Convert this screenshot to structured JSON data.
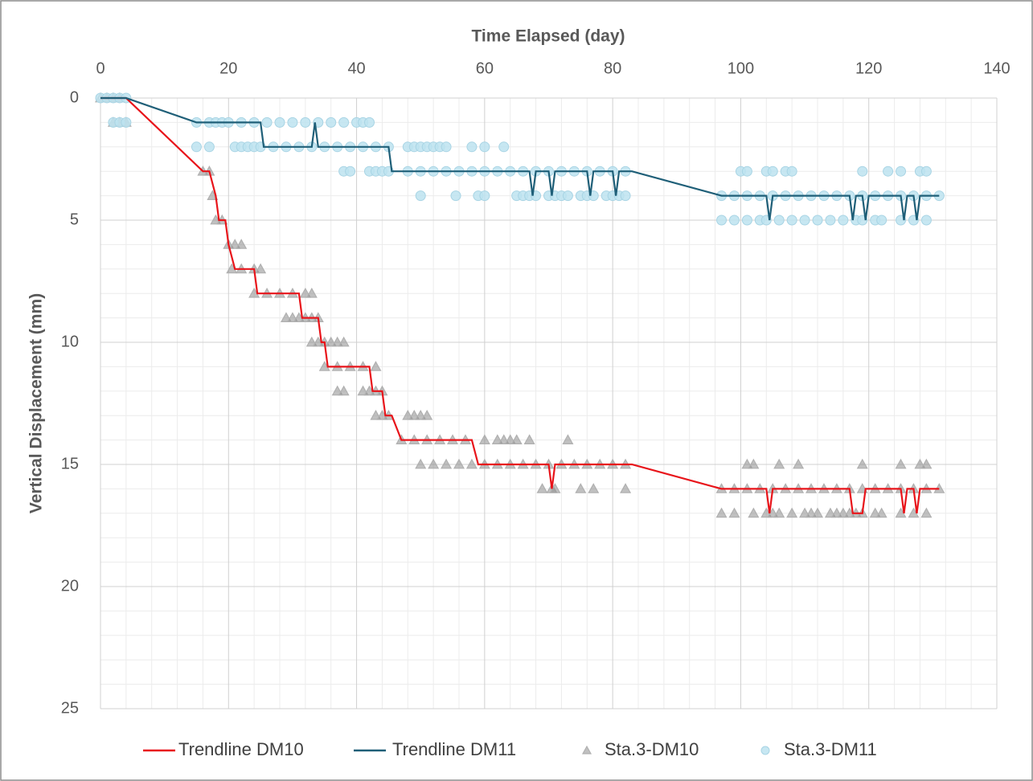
{
  "chart_data": {
    "type": "scatter",
    "x_label": "Time Elapsed (day)",
    "y_label": "Vertical Displacement (mm)",
    "xlim": [
      0,
      140
    ],
    "xticks": [
      0,
      20,
      40,
      60,
      80,
      100,
      120,
      140
    ],
    "ylim": [
      0,
      25
    ],
    "yticks": [
      0,
      5,
      10,
      15,
      20,
      25
    ],
    "y_inverted": true,
    "x_axis_position": "top",
    "grid": true,
    "minor_grid": true,
    "legend": "bottom",
    "series": [
      {
        "name": "Trendline DM10",
        "type": "line",
        "color": "#e8141a",
        "x": [
          0,
          4,
          16,
          17,
          18,
          18.5,
          19.5,
          20,
          21,
          24,
          24.5,
          31,
          31.5,
          34,
          34.5,
          35,
          35.5,
          42,
          42.5,
          44,
          44.5,
          45.5,
          47,
          58,
          59,
          70,
          70.5,
          71,
          83,
          97,
          104,
          104.5,
          105,
          117,
          117.5,
          119,
          119.5,
          125,
          125.5,
          126,
          127,
          127.5,
          128,
          131
        ],
        "values": [
          0,
          0,
          3,
          3,
          4,
          5,
          5,
          6,
          7,
          7,
          8,
          8,
          9,
          9,
          10,
          10,
          11,
          11,
          12,
          12,
          13,
          13,
          14,
          14,
          15,
          15,
          16,
          15,
          15,
          16,
          16,
          17,
          16,
          16,
          17,
          17,
          16,
          16,
          17,
          16,
          16,
          17,
          16,
          16
        ]
      },
      {
        "name": "Trendline DM11",
        "type": "line",
        "color": "#1f5f78",
        "x": [
          0,
          4,
          15,
          25,
          25.5,
          33,
          33.5,
          34,
          45,
          45.5,
          67,
          67.5,
          68,
          70,
          70.5,
          71,
          76,
          76.5,
          77,
          80,
          80.5,
          81,
          83,
          97,
          104,
          104.5,
          105,
          117,
          117.5,
          118,
          119,
          119.5,
          120,
          125,
          125.5,
          126,
          127,
          127.5,
          128,
          131
        ],
        "values": [
          0,
          0,
          1,
          1,
          2,
          2,
          1,
          2,
          2,
          3,
          3,
          4,
          3,
          3,
          4,
          3,
          3,
          4,
          3,
          3,
          4,
          3,
          3,
          4,
          4,
          5,
          4,
          4,
          5,
          4,
          4,
          5,
          4,
          4,
          5,
          4,
          4,
          5,
          4,
          4
        ]
      },
      {
        "name": "Sta.3-DM10",
        "type": "marker",
        "marker": "triangle",
        "color": "#8c8c8c",
        "x": [
          0,
          1,
          2,
          3,
          2,
          3,
          4,
          16,
          17,
          17.5,
          18,
          19,
          20,
          21,
          22,
          20.5,
          22,
          24,
          25,
          24,
          26,
          28,
          30,
          32,
          33,
          29,
          30,
          31,
          32,
          33,
          34,
          33,
          34,
          35,
          36,
          37,
          38,
          35,
          37,
          39,
          41,
          43,
          37,
          38,
          41,
          42,
          43,
          44,
          43,
          44,
          45,
          48,
          49,
          50,
          51,
          47,
          49,
          51,
          53,
          55,
          57,
          60,
          62,
          63,
          64,
          65,
          67,
          73,
          50,
          52,
          54,
          56,
          58,
          60,
          62,
          64,
          66,
          68,
          70,
          72,
          74,
          76,
          78,
          80,
          82,
          69,
          70.5,
          71,
          75,
          77,
          82,
          97,
          99,
          101,
          103,
          105,
          107,
          109,
          111,
          113,
          115,
          117,
          119,
          121,
          123,
          125,
          127,
          129,
          131,
          101,
          102,
          106,
          109,
          119,
          125,
          128,
          129,
          97,
          99,
          102,
          104,
          105,
          106,
          108,
          110,
          111,
          112,
          114,
          115,
          116,
          117,
          118,
          119,
          121,
          122,
          125,
          127,
          129
        ],
        "values": [
          0,
          0,
          0,
          0,
          1,
          1,
          1,
          3,
          3,
          4,
          5,
          5,
          6,
          6,
          6,
          7,
          7,
          7,
          7,
          8,
          8,
          8,
          8,
          8,
          8,
          9,
          9,
          9,
          9,
          9,
          9,
          10,
          10,
          10,
          10,
          10,
          10,
          11,
          11,
          11,
          11,
          11,
          12,
          12,
          12,
          12,
          12,
          12,
          13,
          13,
          13,
          13,
          13,
          13,
          13,
          14,
          14,
          14,
          14,
          14,
          14,
          14,
          14,
          14,
          14,
          14,
          14,
          14,
          15,
          15,
          15,
          15,
          15,
          15,
          15,
          15,
          15,
          15,
          15,
          15,
          15,
          15,
          15,
          15,
          15,
          16,
          16,
          16,
          16,
          16,
          16,
          16,
          16,
          16,
          16,
          16,
          16,
          16,
          16,
          16,
          16,
          16,
          16,
          16,
          16,
          16,
          16,
          16,
          16,
          15,
          15,
          15,
          15,
          15,
          15,
          15,
          15,
          17,
          17,
          17,
          17,
          17,
          17,
          17,
          17,
          17,
          17,
          17,
          17,
          17,
          17,
          17,
          17,
          17,
          17,
          17,
          17,
          17
        ]
      },
      {
        "name": "Sta.3-DM11",
        "type": "marker",
        "marker": "circle",
        "color": "#bde3f0",
        "x": [
          0,
          1,
          2,
          3,
          4,
          2,
          3,
          4,
          15,
          17,
          18,
          19,
          20,
          22,
          24,
          26,
          28,
          30,
          32,
          34,
          36,
          38,
          40,
          41,
          42,
          15,
          17,
          21,
          22,
          23,
          24,
          25,
          27,
          29,
          31,
          33,
          35,
          37,
          39,
          41,
          43,
          45,
          48,
          49,
          50,
          51,
          52,
          53,
          54,
          58,
          60,
          63,
          38,
          39,
          42,
          43,
          44,
          45,
          48,
          50,
          52,
          54,
          56,
          58,
          60,
          62,
          64,
          66,
          68,
          70,
          72,
          74,
          76,
          78,
          80,
          82,
          50,
          55.5,
          59,
          60,
          65,
          66,
          67,
          68,
          70,
          71,
          72,
          73,
          75,
          76,
          77,
          79,
          80,
          81,
          82,
          97,
          99,
          101,
          103,
          105,
          107,
          109,
          111,
          113,
          115,
          117,
          119,
          121,
          123,
          125,
          127,
          129,
          131,
          100,
          101,
          104,
          105,
          107,
          108,
          119,
          123,
          125,
          128,
          129,
          97,
          99,
          101,
          103,
          104,
          106,
          108,
          110,
          112,
          114,
          116,
          118,
          119,
          121,
          122,
          125,
          127,
          129
        ],
        "values": [
          0,
          0,
          0,
          0,
          0,
          1,
          1,
          1,
          1,
          1,
          1,
          1,
          1,
          1,
          1,
          1,
          1,
          1,
          1,
          1,
          1,
          1,
          1,
          1,
          1,
          2,
          2,
          2,
          2,
          2,
          2,
          2,
          2,
          2,
          2,
          2,
          2,
          2,
          2,
          2,
          2,
          2,
          2,
          2,
          2,
          2,
          2,
          2,
          2,
          2,
          2,
          2,
          3,
          3,
          3,
          3,
          3,
          3,
          3,
          3,
          3,
          3,
          3,
          3,
          3,
          3,
          3,
          3,
          3,
          3,
          3,
          3,
          3,
          3,
          3,
          3,
          4,
          4,
          4,
          4,
          4,
          4,
          4,
          4,
          4,
          4,
          4,
          4,
          4,
          4,
          4,
          4,
          4,
          4,
          4,
          4,
          4,
          4,
          4,
          4,
          4,
          4,
          4,
          4,
          4,
          4,
          4,
          4,
          4,
          4,
          4,
          4,
          4,
          3,
          3,
          3,
          3,
          3,
          3,
          3,
          3,
          3,
          3,
          3,
          5,
          5,
          5,
          5,
          5,
          5,
          5,
          5,
          5,
          5,
          5,
          5,
          5,
          5,
          5,
          5,
          5,
          5
        ]
      }
    ]
  }
}
